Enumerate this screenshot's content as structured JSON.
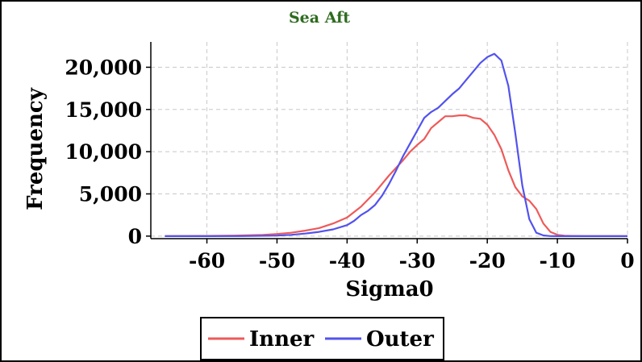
{
  "chart_data": {
    "type": "line",
    "title": "Sea Aft",
    "xlabel": "Sigma0",
    "ylabel": "Frequency",
    "xlim": [
      -68,
      0
    ],
    "ylim": [
      -300,
      23000
    ],
    "xticks": [
      -60,
      -50,
      -40,
      -30,
      -20,
      -10,
      0
    ],
    "yticks": [
      0,
      5000,
      10000,
      15000,
      20000
    ],
    "xtick_labels": [
      "-60",
      "-50",
      "-40",
      "-30",
      "-20",
      "-10",
      "0"
    ],
    "ytick_labels": [
      "0",
      "5,000",
      "10,000",
      "15,000",
      "20,000"
    ],
    "grid": true,
    "legend_position": "bottom-center",
    "colors": {
      "title": "#2e6b1f",
      "Inner": "#ee5a5a",
      "Outer": "#5252ee",
      "grid": "#c8c8c8"
    },
    "series": [
      {
        "name": "Inner",
        "x": [
          -66,
          -60,
          -56,
          -52,
          -50,
          -48,
          -46,
          -44,
          -42,
          -40,
          -38,
          -36,
          -34,
          -32,
          -31,
          -30,
          -29,
          -28,
          -27,
          -26,
          -25,
          -24,
          -23,
          -22,
          -21,
          -20,
          -19,
          -18,
          -17,
          -16,
          -15,
          -14,
          -13,
          -12,
          -11,
          -10,
          -9,
          -8,
          -6,
          -4,
          -2,
          0
        ],
        "y": [
          0,
          20,
          60,
          150,
          250,
          400,
          650,
          950,
          1500,
          2200,
          3500,
          5200,
          7200,
          9000,
          10000,
          10800,
          11500,
          12800,
          13500,
          14200,
          14200,
          14300,
          14300,
          14000,
          13900,
          13200,
          12000,
          10300,
          7800,
          5800,
          4700,
          4200,
          3200,
          1500,
          500,
          150,
          50,
          20,
          0,
          0,
          0,
          0
        ]
      },
      {
        "name": "Outer",
        "x": [
          -66,
          -60,
          -55,
          -50,
          -48,
          -46,
          -44,
          -42,
          -40,
          -39,
          -38,
          -37,
          -36,
          -35,
          -34,
          -33,
          -32,
          -31,
          -30,
          -29,
          -28,
          -27,
          -26,
          -25,
          -24,
          -23,
          -22,
          -21,
          -20,
          -19,
          -18,
          -17,
          -16,
          -15,
          -14,
          -13,
          -12,
          -11,
          -10,
          -9,
          -8,
          -6,
          -4,
          -2,
          0
        ],
        "y": [
          0,
          0,
          10,
          60,
          150,
          300,
          500,
          800,
          1300,
          1800,
          2500,
          3000,
          3700,
          4800,
          6200,
          7800,
          9500,
          11000,
          12500,
          14000,
          14700,
          15200,
          16000,
          16800,
          17500,
          18500,
          19500,
          20500,
          21200,
          21600,
          20800,
          17800,
          12200,
          6000,
          2000,
          400,
          80,
          10,
          0,
          0,
          0,
          0,
          0,
          0,
          0
        ]
      }
    ]
  },
  "legend": {
    "items": [
      {
        "label": "Inner",
        "color": "#ee5a5a"
      },
      {
        "label": "Outer",
        "color": "#5252ee"
      }
    ]
  }
}
